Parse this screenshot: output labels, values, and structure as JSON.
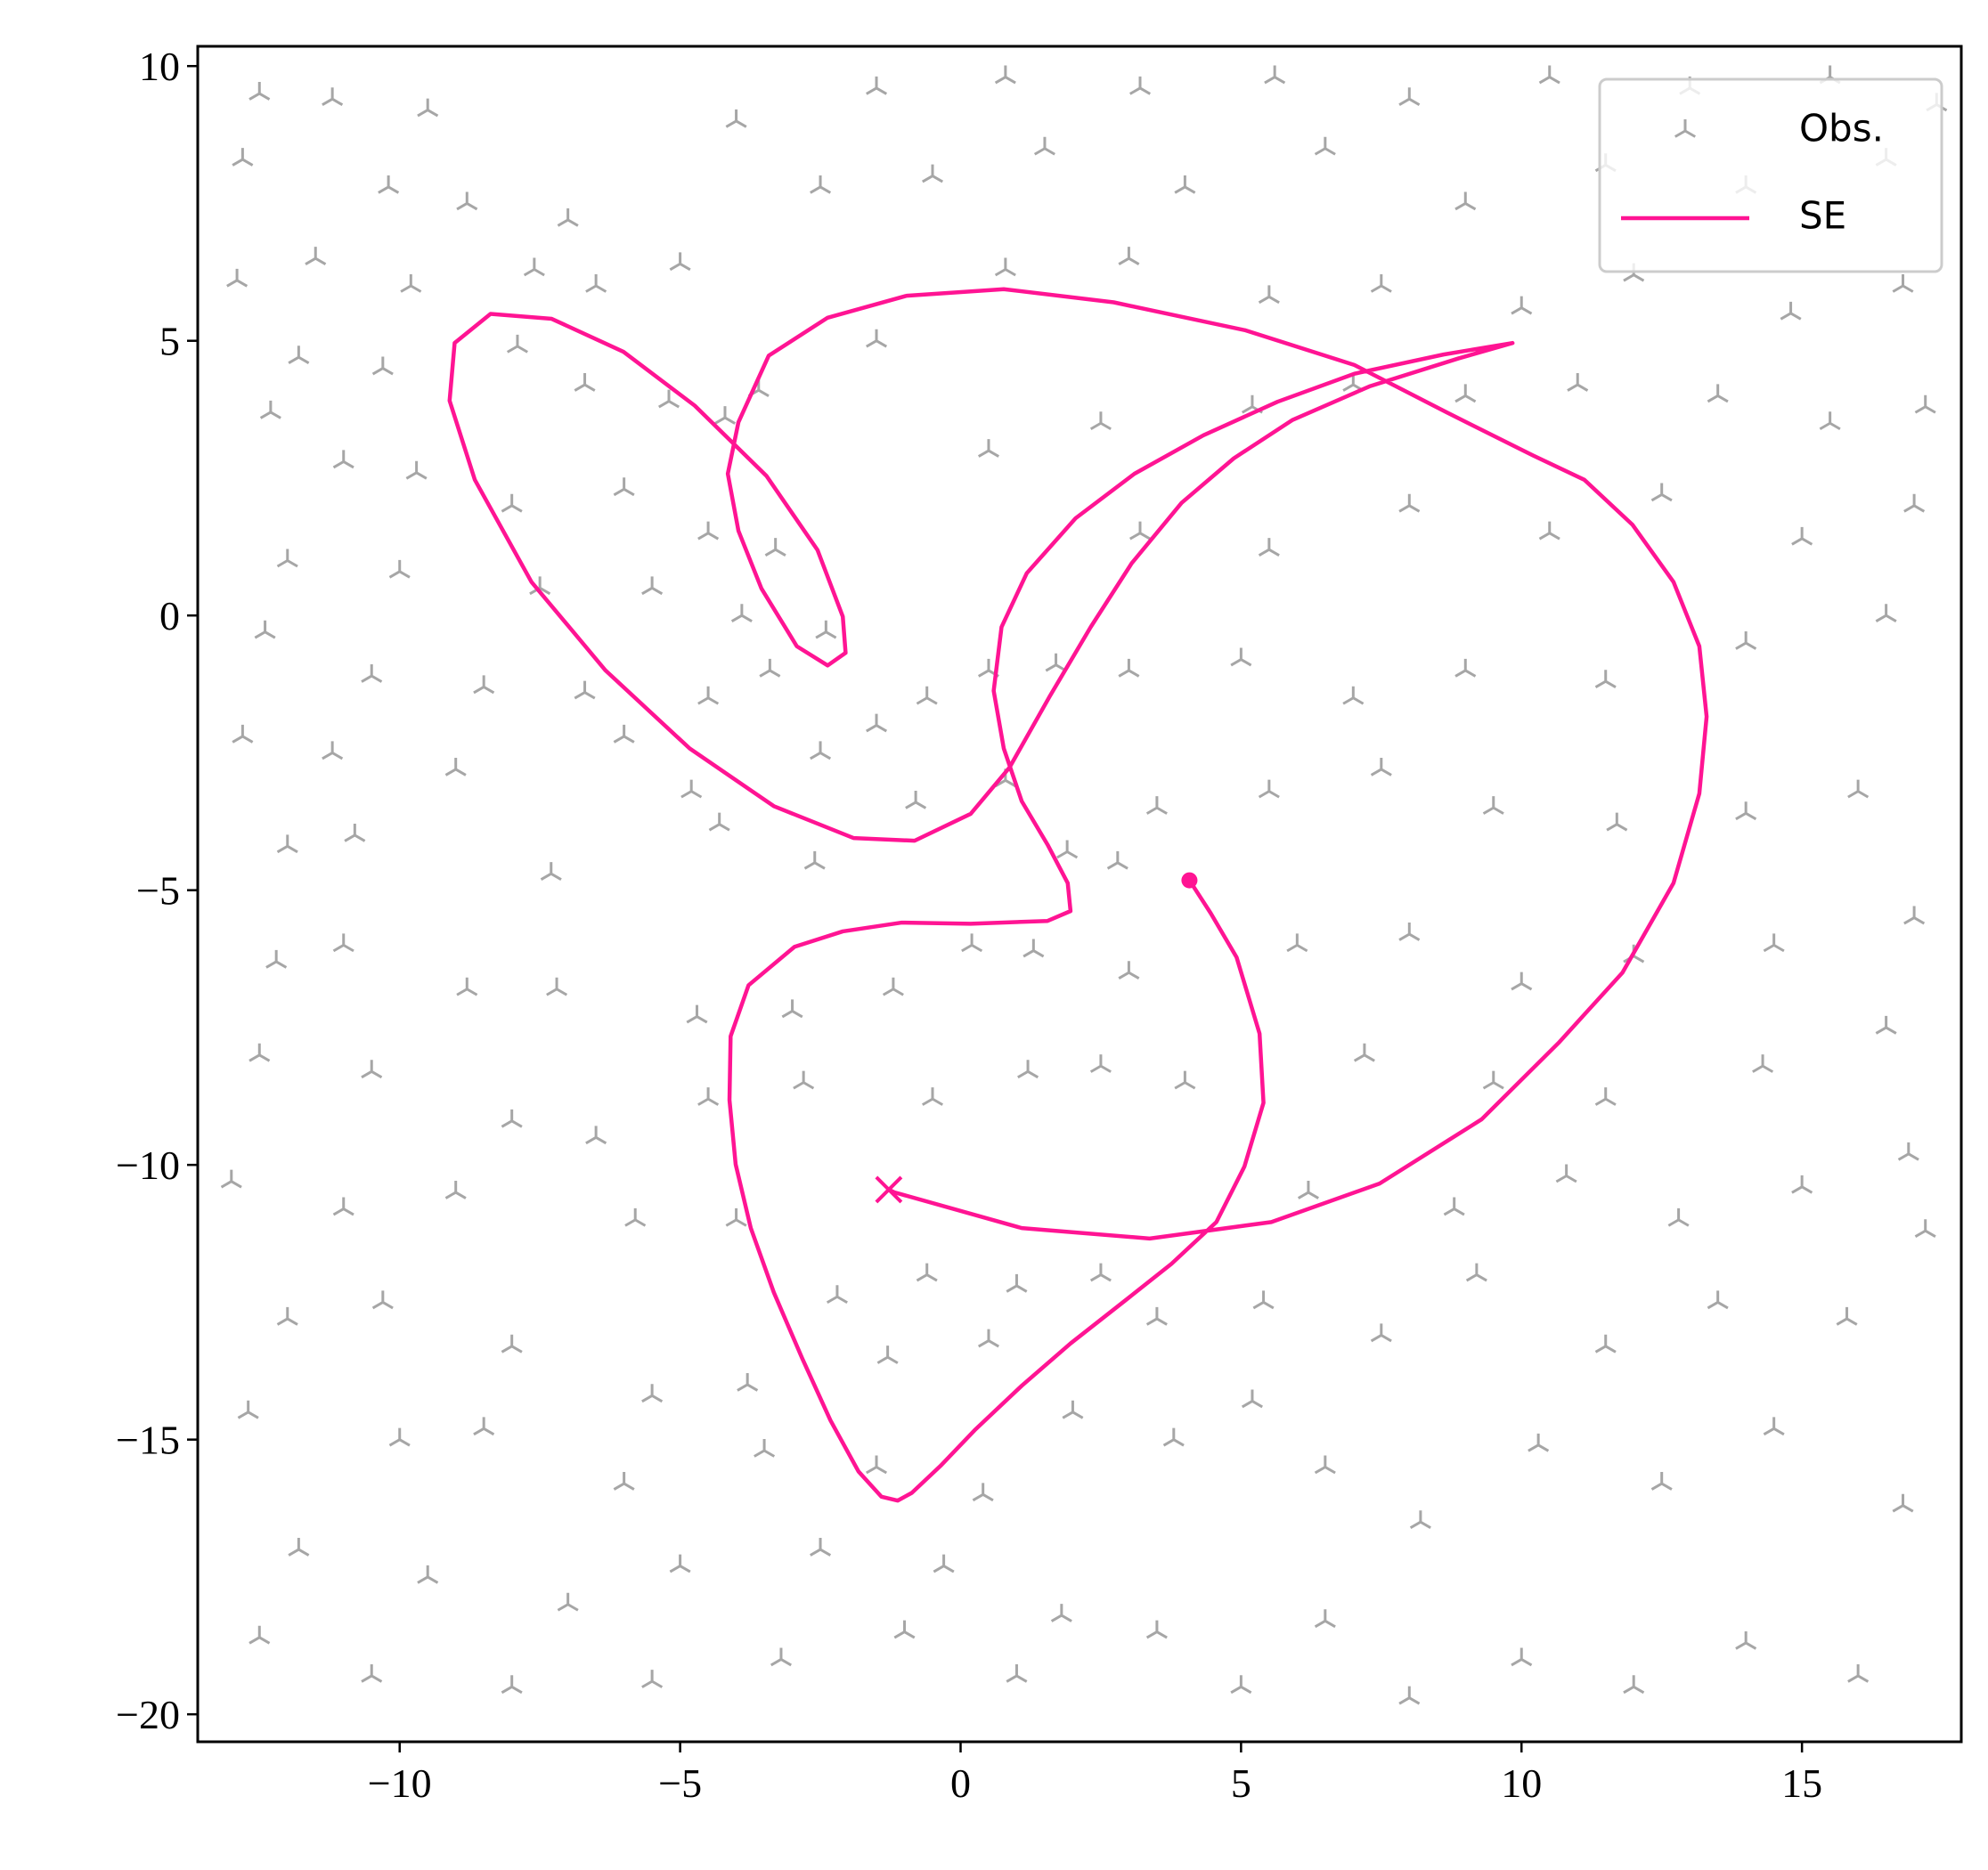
{
  "chart_data": {
    "type": "line",
    "xlim": [
      -13.6,
      17.84
    ],
    "ylim": [
      -20.5,
      10.36
    ],
    "xticks": [
      {
        "value": -10,
        "label": "−10"
      },
      {
        "value": -5,
        "label": "−5"
      },
      0,
      5,
      10,
      15
    ],
    "yticks": [
      {
        "value": -20,
        "label": "−20"
      },
      {
        "value": -15,
        "label": "−15"
      },
      {
        "value": -10,
        "label": "−10"
      },
      {
        "value": -5,
        "label": "−5"
      },
      0,
      5,
      10
    ],
    "legend": "upper right",
    "series": [
      {
        "name": "Obs.",
        "type": "scatter",
        "color": "#000000",
        "x": [
          -12.5,
          -11.2,
          -9.5,
          -12.8,
          -10.2,
          -8.8,
          -7.0,
          -11.5,
          -9.8,
          -7.6,
          -6.5,
          -5.0,
          -12.9,
          -11.8,
          -10.3,
          -7.9,
          -6.7,
          -5.2,
          -4.2,
          -3.6,
          -12.3,
          -11.0,
          -9.7,
          -8.0,
          -6.0,
          -4.5,
          -3.3,
          -12.0,
          -10.0,
          -7.5,
          -5.5,
          -3.9,
          -2.4,
          -12.4,
          -10.5,
          -8.5,
          -6.7,
          -4.5,
          -3.4,
          -12.8,
          -11.2,
          -9.0,
          -6.0,
          -4.8,
          -2.5,
          -1.5,
          -0.6,
          0.5,
          1.7,
          -12.0,
          -10.8,
          -7.3,
          -4.3,
          -2.6,
          -0.8,
          0.8,
          1.9,
          2.8,
          -12.2,
          -11.0,
          -8.8,
          -7.2,
          -4.7,
          -3.0,
          -1.2,
          0.2,
          1.3,
          -12.5,
          -10.5,
          -8.0,
          -6.5,
          -4.5,
          -2.8,
          -0.5,
          1.2,
          -13.0,
          -11.0,
          -9.0,
          -5.8,
          -4.0,
          -2.2,
          -0.6,
          1.0,
          2.5,
          -12.0,
          -10.3,
          -8.0,
          -5.5,
          -3.8,
          -1.3,
          0.5,
          2.0,
          -12.7,
          -10.0,
          -8.5,
          -6.0,
          -3.5,
          -1.5,
          0.4,
          -11.8,
          -9.5,
          -7.0,
          -5.0,
          -2.5,
          -0.3,
          1.8,
          -12.5,
          -10.5,
          -8.0,
          -5.5,
          -3.2,
          -1.0,
          1.0,
          3.5,
          5.0,
          6.5,
          8.0,
          10.0,
          12.0,
          14.0,
          16.0,
          3.8,
          5.2,
          6.5,
          8.2,
          10.3,
          12.5,
          14.5,
          16.8,
          3.5,
          5.4,
          7.5,
          9.2,
          11.5,
          13.5,
          15.8,
          17.2,
          6.2,
          8.8,
          10.8,
          12.8,
          15.0,
          16.9,
          2.5,
          4.0,
          7.2,
          9.5,
          11.5,
          14.3,
          16.5,
          3.0,
          6.0,
          8.0,
          10.0,
          12.0,
          14.5,
          17.0,
          3.5,
          5.5,
          7.5,
          9.5,
          11.7,
          14.0,
          16.0,
          3.0,
          5.0,
          7.0,
          9.0,
          11.5,
          14.0,
          16.5,
          3.2,
          5.5,
          8.0,
          10.5,
          12.5,
          15.0,
          17.0,
          0.5,
          2.5,
          5.2,
          7.0,
          9.0,
          11.0,
          13.5,
          15.5,
          17.2,
          -1.5,
          0.8,
          3.0,
          5.5,
          7.5,
          10.0,
          12.0,
          14.8,
          16.8,
          -2.5,
          -0.5,
          1.5,
          4.0,
          6.5,
          9.0,
          11.5,
          14.0,
          16.5,
          -4.0,
          -1.5,
          0.8,
          3.2,
          5.6,
          8.0,
          10.5,
          13.0,
          15.5,
          17.4
        ],
        "y": [
          9.5,
          9.4,
          9.2,
          8.3,
          7.8,
          7.5,
          7.2,
          6.5,
          6.0,
          6.3,
          6.0,
          6.4,
          6.1,
          4.7,
          4.5,
          4.9,
          4.2,
          3.9,
          3.6,
          4.1,
          3.7,
          2.8,
          2.6,
          2.0,
          2.3,
          1.5,
          1.2,
          1.0,
          0.8,
          0.5,
          0.5,
          0.0,
          -0.3,
          -0.3,
          -1.1,
          -1.3,
          -1.4,
          -1.5,
          -1.0,
          -2.2,
          -2.5,
          -2.8,
          -2.2,
          -3.2,
          -2.5,
          -2.0,
          -1.5,
          -1.0,
          -0.9,
          -4.2,
          -4.0,
          -4.7,
          -3.8,
          -4.5,
          -3.4,
          -3.0,
          -4.3,
          -4.5,
          -6.3,
          -6.0,
          -6.8,
          -6.8,
          -7.3,
          -7.2,
          -6.8,
          -6.0,
          -6.1,
          -8.0,
          -8.3,
          -9.2,
          -9.5,
          -8.8,
          -8.5,
          -8.8,
          -8.3,
          -10.3,
          -10.8,
          -10.5,
          -11.0,
          -11.0,
          -12.4,
          -12.0,
          -12.2,
          -12.0,
          -12.8,
          -12.5,
          -13.3,
          -14.2,
          -14.0,
          -13.5,
          -13.2,
          -14.5,
          -14.5,
          -15.0,
          -14.8,
          -15.8,
          -15.2,
          -15.5,
          -16.0,
          -17.0,
          -17.5,
          -18.0,
          -17.3,
          -17.0,
          -17.3,
          -18.2,
          -18.6,
          -19.3,
          -19.5,
          -19.4,
          -19.0,
          -18.5,
          -19.3,
          -18.5,
          -19.5,
          -18.3,
          -19.7,
          -19.0,
          -19.5,
          -18.7,
          -19.3,
          -15.0,
          -14.3,
          -15.5,
          -16.5,
          -15.1,
          -15.8,
          -14.8,
          -16.2,
          -12.8,
          -12.5,
          -13.1,
          -12.0,
          -13.3,
          -12.5,
          -12.8,
          -11.2,
          -10.5,
          -10.8,
          -10.2,
          -11.0,
          -10.4,
          -9.8,
          -8.2,
          -8.5,
          -8.0,
          -8.5,
          -8.8,
          -8.2,
          -7.5,
          -6.5,
          -6.0,
          -5.8,
          -6.7,
          -6.2,
          -6.0,
          -5.5,
          -3.5,
          -3.2,
          -2.8,
          -3.5,
          -3.8,
          -3.6,
          -3.2,
          -1.0,
          -0.8,
          -1.5,
          -1.0,
          -1.2,
          -0.5,
          0.0,
          1.5,
          1.2,
          2.0,
          1.5,
          2.2,
          1.4,
          2.0,
          3.0,
          3.5,
          3.8,
          4.2,
          4.0,
          4.2,
          4.0,
          3.5,
          3.8,
          5.0,
          6.3,
          6.5,
          5.8,
          6.0,
          5.6,
          6.2,
          5.5,
          6.0,
          7.8,
          8.0,
          8.5,
          7.8,
          8.5,
          7.5,
          8.2,
          7.8,
          8.3,
          9.0,
          9.6,
          9.8,
          9.6,
          9.8,
          9.4,
          9.8,
          9.6,
          9.8,
          9.3
        ]
      },
      {
        "name": "SE",
        "type": "line",
        "color": "#ff1493",
        "x": [
          4.08,
          4.46,
          4.92,
          5.33,
          5.4,
          5.06,
          4.56,
          3.76,
          2.92,
          1.96,
          1.09,
          0.25,
          -0.36,
          -0.87,
          -1.12,
          -1.41,
          -1.82,
          -2.32,
          -2.82,
          -3.33,
          -3.74,
          -4.01,
          -4.12,
          -4.1,
          -3.78,
          -2.96,
          -2.1,
          -1.05,
          0.18,
          1.55,
          1.96,
          1.91,
          1.55,
          1.09,
          0.77,
          0.59,
          0.73,
          1.18,
          2.05,
          3.1,
          4.33,
          5.65,
          7.02,
          8.61,
          9.84,
          8.88,
          7.29,
          5.92,
          4.87,
          3.94,
          3.05,
          2.32,
          1.59,
          0.87,
          0.18,
          -0.82,
          -1.91,
          -3.33,
          -4.83,
          -6.33,
          -7.65,
          -8.66,
          -9.11,
          -9.02,
          -8.38,
          -7.29,
          -6.01,
          -4.74,
          -3.46,
          -2.55,
          -2.1,
          -2.05,
          -2.37,
          -2.92,
          -3.55,
          -3.96,
          -4.15,
          -3.96,
          -3.42,
          -2.37,
          -0.96,
          0.77,
          2.73,
          5.08,
          7.02,
          8.66,
          10.21,
          11.12,
          11.98,
          12.71,
          13.17,
          13.3,
          13.17,
          12.71,
          11.8,
          10.66,
          9.29,
          7.47,
          5.54,
          3.37,
          1.09,
          -1.18,
          -1.28
        ],
        "y": [
          -4.82,
          -5.42,
          -6.22,
          -7.61,
          -8.87,
          -10.03,
          -11.04,
          -11.8,
          -12.48,
          -13.25,
          -14.02,
          -14.83,
          -15.48,
          -15.97,
          -16.11,
          -16.04,
          -15.58,
          -14.65,
          -13.53,
          -12.32,
          -11.15,
          -9.99,
          -8.82,
          -7.66,
          -6.73,
          -6.03,
          -5.75,
          -5.59,
          -5.61,
          -5.56,
          -5.38,
          -4.87,
          -4.17,
          -3.38,
          -2.42,
          -1.37,
          -0.21,
          0.77,
          1.77,
          2.58,
          3.28,
          3.89,
          4.4,
          4.75,
          4.96,
          4.68,
          4.17,
          3.56,
          2.86,
          2.05,
          0.95,
          -0.21,
          -1.47,
          -2.77,
          -3.61,
          -4.1,
          -4.05,
          -3.47,
          -2.42,
          -1.0,
          0.61,
          2.47,
          3.91,
          4.96,
          5.49,
          5.4,
          4.8,
          3.82,
          2.54,
          1.19,
          -0.02,
          -0.68,
          -0.91,
          -0.56,
          0.49,
          1.54,
          2.58,
          3.52,
          4.73,
          5.42,
          5.82,
          5.94,
          5.7,
          5.19,
          4.56,
          3.7,
          2.91,
          2.47,
          1.65,
          0.61,
          -0.56,
          -1.84,
          -3.24,
          -4.87,
          -6.5,
          -7.78,
          -9.17,
          -10.34,
          -11.04,
          -11.34,
          -11.15,
          -10.5,
          -10.45
        ]
      }
    ]
  }
}
